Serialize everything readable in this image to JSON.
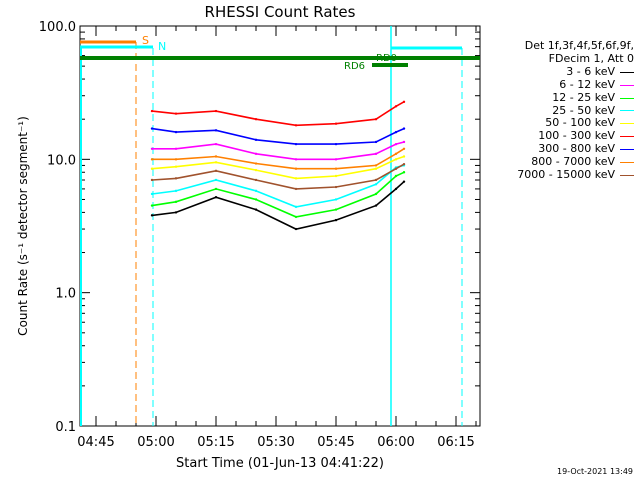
{
  "chart_data": {
    "type": "line",
    "title": "RHESSI Count Rates",
    "xlabel": "Start Time (01-Jun-13 04:41:22)",
    "ylabel": "Count Rate (s⁻¹ detector segment⁻¹)",
    "y_scale": "log",
    "ylim": [
      0.1,
      100.0
    ],
    "xlim": [
      "04:41",
      "06:21"
    ],
    "x_ticks": [
      "04:45",
      "05:00",
      "05:15",
      "05:30",
      "05:45",
      "06:00",
      "06:15"
    ],
    "y_ticks": [
      "0.1",
      "1.0",
      "10.0",
      "100.0"
    ],
    "legend_header": [
      "Det 1f,3f,4f,5f,6f,9f,",
      "FDecim 1, Att 0"
    ],
    "series": [
      {
        "name": "3 - 6 keV",
        "color": "#000000",
        "x": [
          "04:59",
          "05:05",
          "05:15",
          "05:25",
          "05:35",
          "05:45",
          "05:55",
          "06:00",
          "06:02"
        ],
        "y": [
          3.8,
          4.0,
          5.2,
          4.2,
          3.0,
          3.5,
          4.5,
          6.0,
          6.8
        ]
      },
      {
        "name": "6 - 12 keV",
        "color": "#ff00ff",
        "x": [
          "04:59",
          "05:05",
          "05:15",
          "05:25",
          "05:35",
          "05:45",
          "05:55",
          "06:00",
          "06:02"
        ],
        "y": [
          12.0,
          12.0,
          13.0,
          11.0,
          10.0,
          10.0,
          11.0,
          13.0,
          13.5
        ]
      },
      {
        "name": "12 - 25 keV",
        "color": "#00ff00",
        "x": [
          "04:59",
          "05:05",
          "05:15",
          "05:25",
          "05:35",
          "05:45",
          "05:55",
          "06:00",
          "06:02"
        ],
        "y": [
          4.5,
          4.8,
          6.0,
          5.0,
          3.7,
          4.2,
          5.5,
          7.5,
          8.0
        ]
      },
      {
        "name": "25 - 50 keV",
        "color": "#00ffff",
        "x": [
          "04:59",
          "05:05",
          "05:15",
          "05:25",
          "05:35",
          "05:45",
          "05:55",
          "06:00",
          "06:02"
        ],
        "y": [
          5.5,
          5.8,
          7.0,
          5.8,
          4.4,
          5.0,
          6.5,
          8.7,
          9.0
        ]
      },
      {
        "name": "50 - 100 keV",
        "color": "#ffff00",
        "x": [
          "04:59",
          "05:05",
          "05:15",
          "05:25",
          "05:35",
          "05:45",
          "05:55",
          "06:00",
          "06:02"
        ],
        "y": [
          8.5,
          8.8,
          9.5,
          8.3,
          7.2,
          7.5,
          8.5,
          10.0,
          10.5
        ]
      },
      {
        "name": "100 - 300 keV",
        "color": "#ff0000",
        "x": [
          "04:59",
          "05:05",
          "05:15",
          "05:25",
          "05:35",
          "05:45",
          "05:55",
          "06:00",
          "06:02"
        ],
        "y": [
          23.0,
          22.0,
          23.0,
          20.0,
          18.0,
          18.5,
          20.0,
          25.0,
          27.0
        ]
      },
      {
        "name": "300 - 800 keV",
        "color": "#0000ff",
        "x": [
          "04:59",
          "05:05",
          "05:15",
          "05:25",
          "05:35",
          "05:45",
          "05:55",
          "06:00",
          "06:02"
        ],
        "y": [
          17.0,
          16.0,
          16.5,
          14.0,
          13.0,
          13.0,
          13.5,
          16.0,
          17.0
        ]
      },
      {
        "name": "800 - 7000 keV",
        "color": "#ff8000",
        "x": [
          "04:59",
          "05:05",
          "05:15",
          "05:25",
          "05:35",
          "05:45",
          "05:55",
          "06:00",
          "06:02"
        ],
        "y": [
          10.0,
          10.0,
          10.5,
          9.3,
          8.5,
          8.5,
          9.0,
          11.0,
          12.0
        ]
      },
      {
        "name": "7000 - 15000 keV",
        "color": "#a0522d",
        "x": [
          "04:59",
          "05:05",
          "05:15",
          "05:25",
          "05:35",
          "05:45",
          "05:55",
          "06:00",
          "06:02"
        ],
        "y": [
          7.0,
          7.2,
          8.2,
          7.0,
          6.0,
          6.2,
          7.0,
          8.5,
          9.2
        ]
      }
    ],
    "annotations": {
      "S_label": "S",
      "N_label": "N",
      "RD0_label": "RD0",
      "RD6_label": "RD6",
      "S_color": "#ff8000",
      "N_color": "#00ffff",
      "RD_color": "#008000"
    }
  },
  "footer_date": "19-Oct-2021 13:49"
}
